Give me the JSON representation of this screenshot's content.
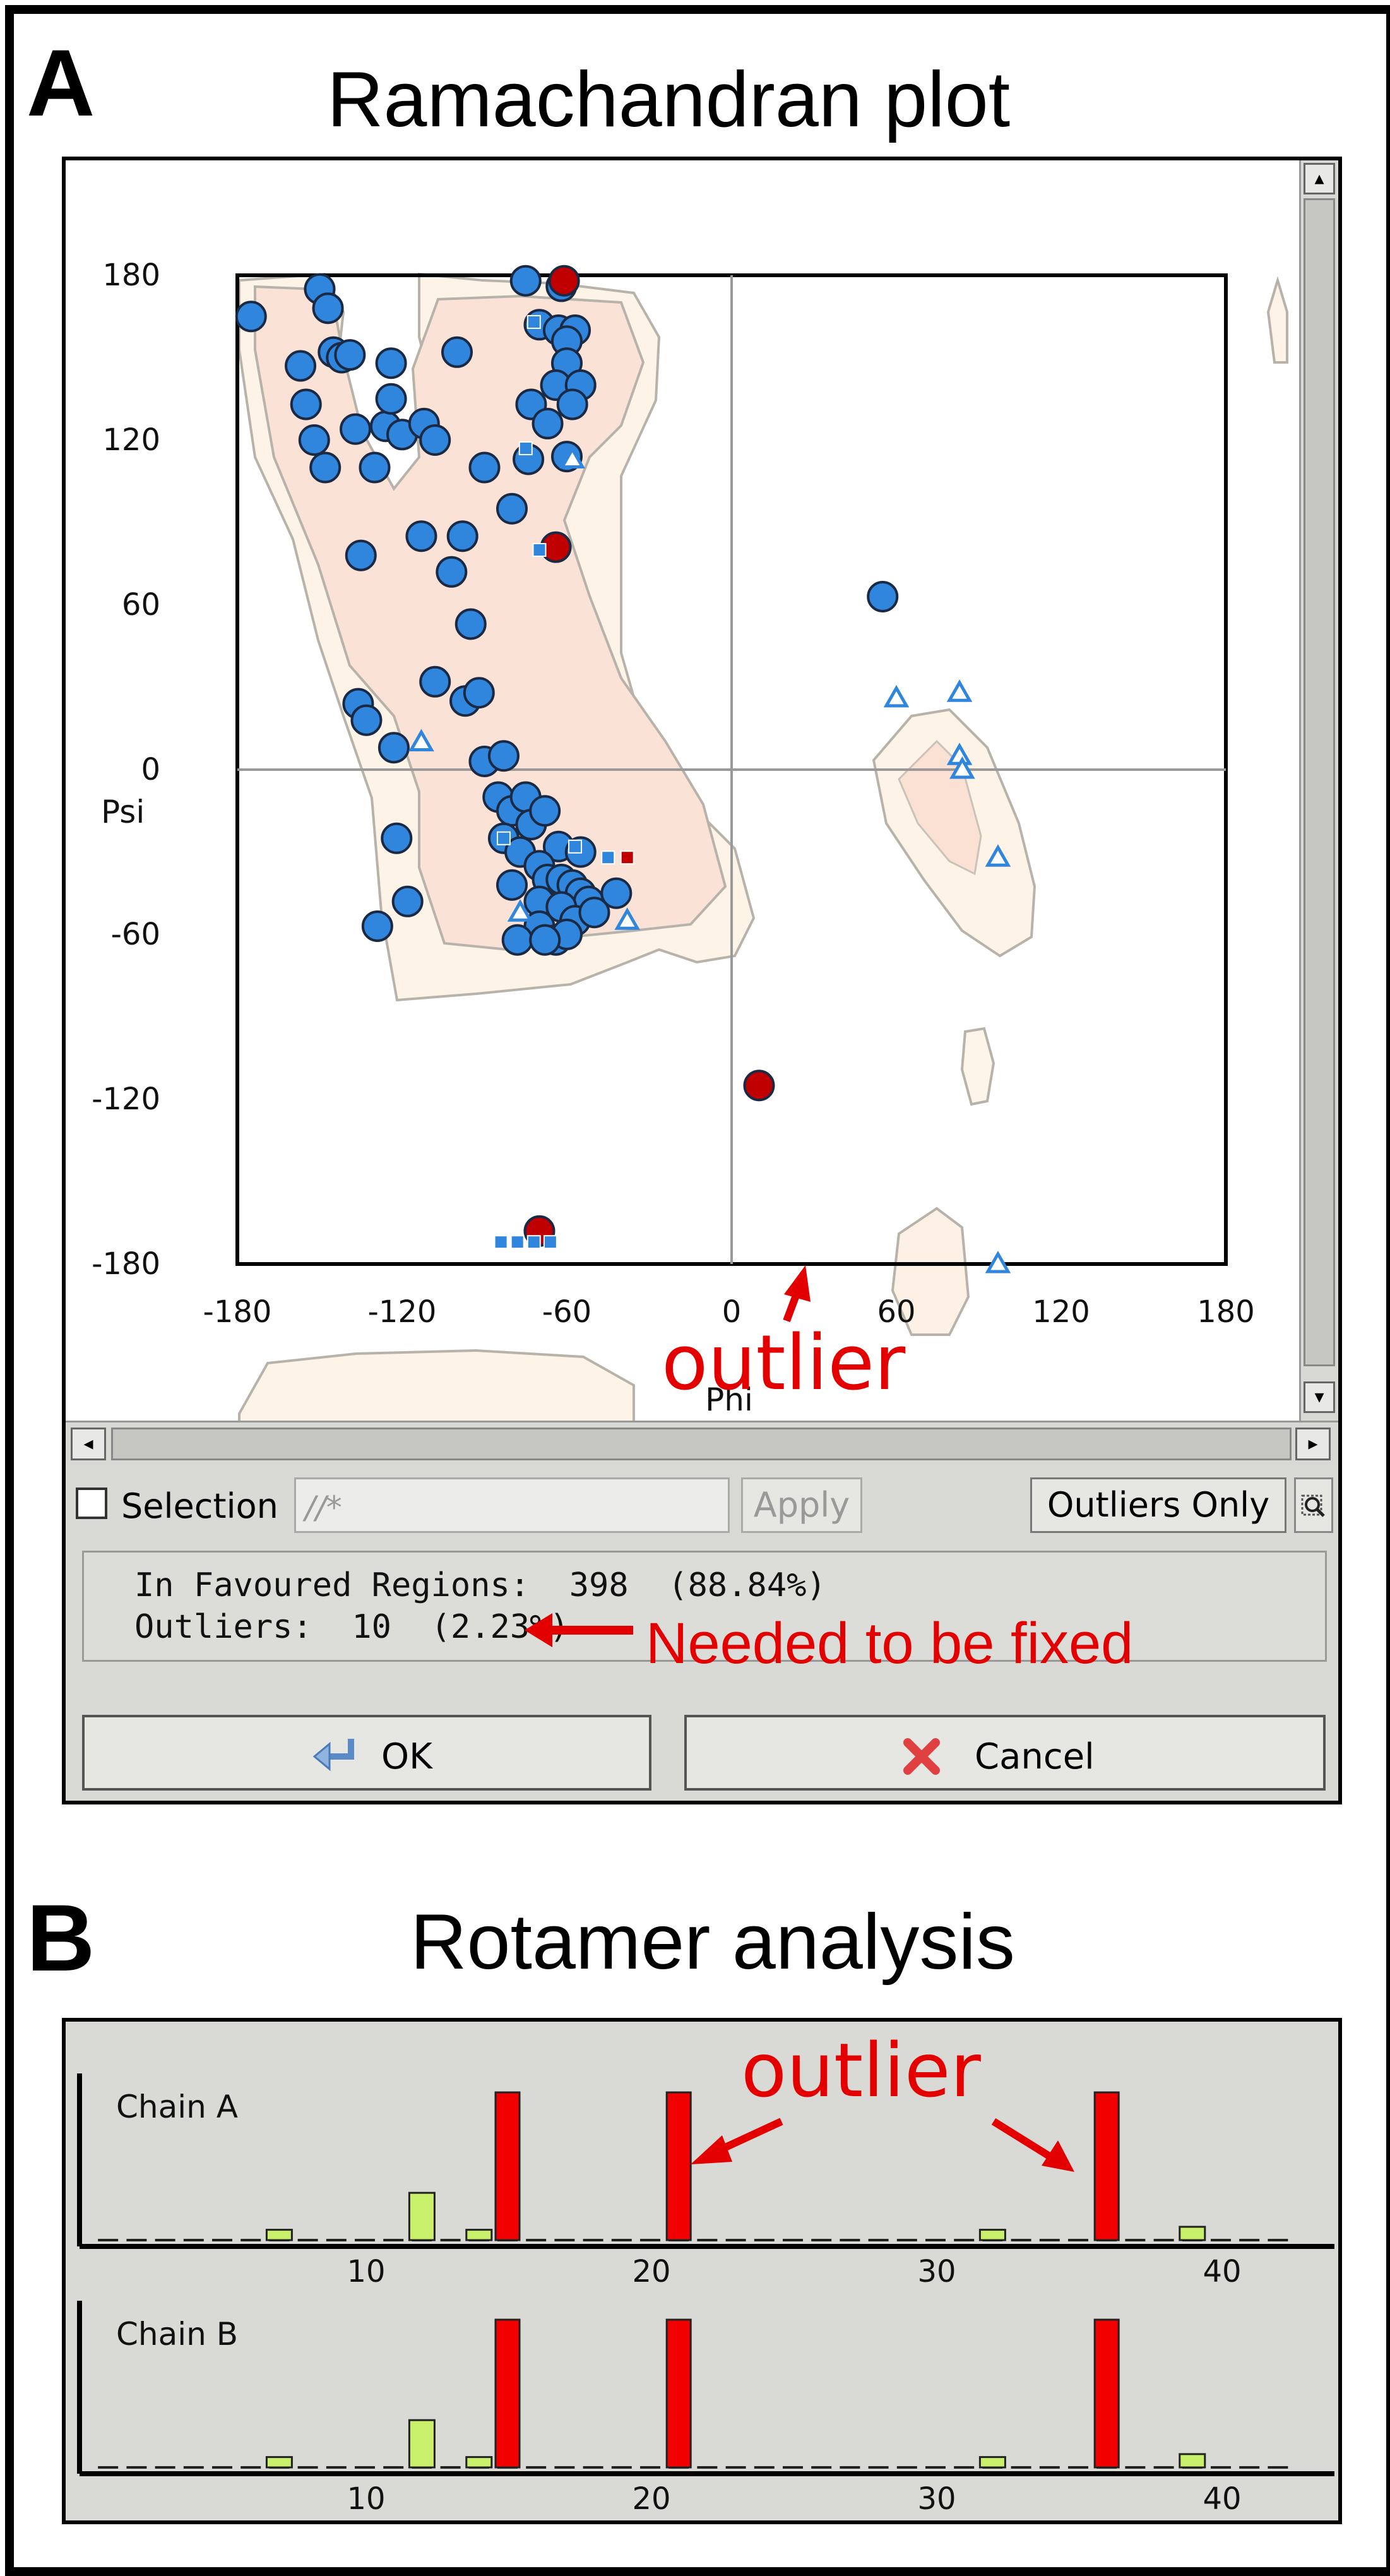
{
  "panel_a": {
    "letter": "A",
    "title": "Ramachandran plot"
  },
  "panel_b": {
    "letter": "B",
    "title": "Rotamer analysis"
  },
  "ramachandran": {
    "chart_data": {
      "type": "scatter",
      "xlabel": "Phi",
      "ylabel": "Psi",
      "xlim": [
        -180,
        180
      ],
      "ylim": [
        -180,
        180
      ],
      "x_ticks": [
        "-180",
        "-120",
        "-60",
        "0",
        "60",
        "120",
        "180"
      ],
      "y_ticks": [
        "180",
        "120",
        "60",
        "0",
        "-60",
        "-120",
        "-180"
      ],
      "grid": "zero lines at phi=0 and psi=0",
      "series": [
        {
          "marker": "circle",
          "color": "#2f86dc",
          "points": [
            [
              -175,
              165
            ],
            [
              -157,
              147
            ],
            [
              -150,
              175
            ],
            [
              -147,
              168
            ],
            [
              -145,
              152
            ],
            [
              -142,
              150
            ],
            [
              -139,
              151
            ],
            [
              -155,
              133
            ],
            [
              -152,
              120
            ],
            [
              -148,
              110
            ],
            [
              -137,
              124
            ],
            [
              -130,
              110
            ],
            [
              -126,
              125
            ],
            [
              -124,
              148
            ],
            [
              -124,
              135
            ],
            [
              -120,
              122
            ],
            [
              -112,
              126
            ],
            [
              -108,
              120
            ],
            [
              -100,
              152
            ],
            [
              -90,
              110
            ],
            [
              -75,
              178
            ],
            [
              -62,
              176
            ],
            [
              -70,
              162
            ],
            [
              -63,
              160
            ],
            [
              -57,
              160
            ],
            [
              -60,
              156
            ],
            [
              -60,
              148
            ],
            [
              -64,
              140
            ],
            [
              -55,
              140
            ],
            [
              -58,
              133
            ],
            [
              -73,
              133
            ],
            [
              -67,
              126
            ],
            [
              -60,
              114
            ],
            [
              -74,
              113
            ],
            [
              -80,
              95
            ],
            [
              -98,
              85
            ],
            [
              -113,
              85
            ],
            [
              -102,
              72
            ],
            [
              -135,
              78
            ],
            [
              -95,
              53
            ],
            [
              -108,
              32
            ],
            [
              -97,
              25
            ],
            [
              -92,
              28
            ],
            [
              -136,
              24
            ],
            [
              -133,
              18
            ],
            [
              -123,
              8
            ],
            [
              -90,
              3
            ],
            [
              -83,
              5
            ],
            [
              -85,
              -10
            ],
            [
              -80,
              -15
            ],
            [
              -75,
              -10
            ],
            [
              -73,
              -20
            ],
            [
              -68,
              -15
            ],
            [
              -63,
              -28
            ],
            [
              -55,
              -30
            ],
            [
              -83,
              -25
            ],
            [
              -77,
              -30
            ],
            [
              -70,
              -35
            ],
            [
              -67,
              -40
            ],
            [
              -62,
              -40
            ],
            [
              -58,
              -42
            ],
            [
              -55,
              -45
            ],
            [
              -52,
              -48
            ],
            [
              -70,
              -48
            ],
            [
              -62,
              -50
            ],
            [
              -57,
              -55
            ],
            [
              -50,
              -52
            ],
            [
              -70,
              -57
            ],
            [
              -64,
              -62
            ],
            [
              -60,
              -60
            ],
            [
              -78,
              -62
            ],
            [
              -42,
              -45
            ],
            [
              -80,
              -42
            ],
            [
              -122,
              -25
            ],
            [
              -118,
              -48
            ],
            [
              -129,
              -57
            ],
            [
              55,
              63
            ],
            [
              -68,
              -62
            ]
          ]
        },
        {
          "marker": "circle",
          "color": "#c00000",
          "name": "outliers",
          "points": [
            [
              -61,
              178
            ],
            [
              -64,
              81
            ],
            [
              10,
              -115
            ],
            [
              -70,
              -168
            ]
          ]
        },
        {
          "marker": "triangle",
          "color": "#2f86dc",
          "points": [
            [
              -113,
              10
            ],
            [
              -58,
              113
            ],
            [
              -38,
              -55
            ],
            [
              -77,
              -52
            ],
            [
              60,
              26
            ],
            [
              83,
              28
            ],
            [
              83,
              5
            ],
            [
              84,
              0
            ],
            [
              97,
              -32
            ],
            [
              97,
              -180
            ]
          ]
        },
        {
          "marker": "square",
          "color": "#2f86dc",
          "points": [
            [
              -72,
              163
            ],
            [
              -75,
              117
            ],
            [
              -70,
              80
            ],
            [
              -45,
              -32
            ],
            [
              -57,
              -28
            ],
            [
              -83,
              -25
            ],
            [
              -78,
              -172
            ],
            [
              -72,
              -172
            ],
            [
              -66,
              -172
            ],
            [
              -84,
              -172
            ]
          ]
        },
        {
          "marker": "square",
          "color": "#c00000",
          "points": [
            [
              -38,
              -32
            ]
          ]
        }
      ],
      "annotation": "outlier"
    }
  },
  "selection_bar": {
    "checkbox_label": "Selection",
    "input_placeholder": "//*",
    "apply_label": "Apply",
    "outliers_only_label": "Outliers Only"
  },
  "stats": {
    "favoured": "In Favoured Regions:  398  (88.84%)",
    "outliers": "Outliers:  10  (2.23%)",
    "note": "Needed to be fixed"
  },
  "buttons": {
    "ok": "OK",
    "cancel": "Cancel"
  },
  "rotamer": {
    "chart_data": {
      "type": "bar",
      "x_ticks": [
        "10",
        "20",
        "30",
        "40"
      ],
      "annotation": "outlier",
      "series": [
        {
          "name": "Chain A",
          "red_bars": [
            [
              15,
              1.0
            ],
            [
              21,
              1.0
            ],
            [
              36,
              1.0
            ]
          ],
          "green_bars": [
            [
              7,
              0.07
            ],
            [
              12,
              0.32
            ],
            [
              14,
              0.07
            ],
            [
              32,
              0.07
            ],
            [
              39,
              0.09
            ]
          ]
        },
        {
          "name": "Chain B",
          "red_bars": [
            [
              15,
              1.0
            ],
            [
              21,
              1.0
            ],
            [
              36,
              1.0
            ]
          ],
          "green_bars": [
            [
              7,
              0.07
            ],
            [
              12,
              0.32
            ],
            [
              14,
              0.07
            ],
            [
              32,
              0.07
            ],
            [
              39,
              0.09
            ]
          ]
        }
      ]
    }
  },
  "colors": {
    "favoured_fill": "#fbe4d8",
    "allowed_fill": "#fdf3e8",
    "contour": "#b8b3aa",
    "blue": "#2f86dc",
    "outlier_red": "#c00000",
    "annotation_red": "#e20000",
    "rotamer_red": "#f20000",
    "rotamer_green": "#c9f06a"
  }
}
